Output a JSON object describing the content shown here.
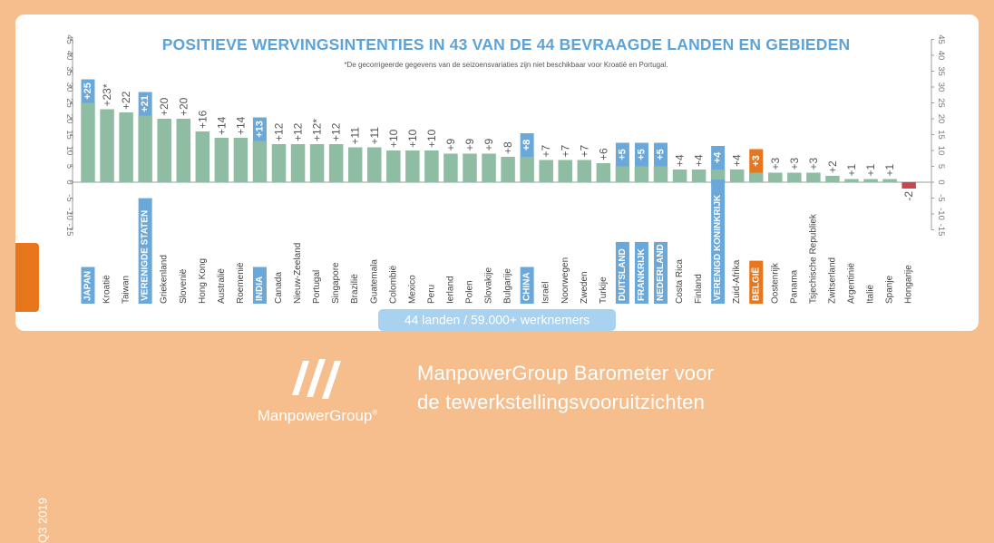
{
  "quarter": "Q3 2019",
  "brand": "ManpowerGroup",
  "brand_mark": "®",
  "tagline": [
    "ManpowerGroup Barometer voor",
    "de tewerkstellingsvooruitzichten"
  ],
  "icons": {
    "logo": "manpowergroup-logo"
  },
  "colors": {
    "bar": "#8ebda3",
    "negative_bar": "#c9454f",
    "highlight_blue": "#6aa8da",
    "highlight_orange": "#e8761c",
    "title": "#5ba3d9",
    "background": "#f6bd8d"
  },
  "chart_data": {
    "type": "bar",
    "title": "POSITIEVE WERVINGSINTENTIES IN 43 VAN DE 44 BEVRAAGDE LANDEN EN GEBIEDEN",
    "subtitle": "*De gecorrigeerde gegevens van de seizoensvariaties zijn niet beschikbaar voor Kroatië en Portugal.",
    "ylim": [
      -15,
      45
    ],
    "yticks": [
      "-15",
      "-10",
      "-5",
      "0",
      "5",
      "10",
      "15",
      "20",
      "25",
      "30",
      "35",
      "40",
      "45"
    ],
    "footer_badge": "44 landen / 59.000+ werknemers",
    "bars": [
      {
        "country": "JAPAN",
        "value": 25,
        "label": "+25",
        "highlight": "blue"
      },
      {
        "country": "Kroatië",
        "value": 23,
        "label": "+23*",
        "highlight": "none"
      },
      {
        "country": "Taiwan",
        "value": 22,
        "label": "+22",
        "highlight": "none"
      },
      {
        "country": "VERENIGDE STATEN",
        "value": 21,
        "label": "+21",
        "highlight": "blue"
      },
      {
        "country": "Griekenland",
        "value": 20,
        "label": "+20",
        "highlight": "none"
      },
      {
        "country": "Slovenië",
        "value": 20,
        "label": "+20",
        "highlight": "none"
      },
      {
        "country": "Hong Kong",
        "value": 16,
        "label": "+16",
        "highlight": "none"
      },
      {
        "country": "Australië",
        "value": 14,
        "label": "+14",
        "highlight": "none"
      },
      {
        "country": "Roemenië",
        "value": 14,
        "label": "+14",
        "highlight": "none"
      },
      {
        "country": "INDIA",
        "value": 13,
        "label": "+13",
        "highlight": "blue"
      },
      {
        "country": "Canada",
        "value": 12,
        "label": "+12",
        "highlight": "none"
      },
      {
        "country": "Nieuw-Zeeland",
        "value": 12,
        "label": "+12",
        "highlight": "none"
      },
      {
        "country": "Portugal",
        "value": 12,
        "label": "+12*",
        "highlight": "none"
      },
      {
        "country": "Singapore",
        "value": 12,
        "label": "+12",
        "highlight": "none"
      },
      {
        "country": "Brazilië",
        "value": 11,
        "label": "+11",
        "highlight": "none"
      },
      {
        "country": "Guatemala",
        "value": 11,
        "label": "+11",
        "highlight": "none"
      },
      {
        "country": "Colombië",
        "value": 10,
        "label": "+10",
        "highlight": "none"
      },
      {
        "country": "Mexico",
        "value": 10,
        "label": "+10",
        "highlight": "none"
      },
      {
        "country": "Peru",
        "value": 10,
        "label": "+10",
        "highlight": "none"
      },
      {
        "country": "Ierland",
        "value": 9,
        "label": "+9",
        "highlight": "none"
      },
      {
        "country": "Polen",
        "value": 9,
        "label": "+9",
        "highlight": "none"
      },
      {
        "country": "Slovakije",
        "value": 9,
        "label": "+9",
        "highlight": "none"
      },
      {
        "country": "Bulgarije",
        "value": 8,
        "label": "+8",
        "highlight": "none"
      },
      {
        "country": "CHINA",
        "value": 8,
        "label": "+8",
        "highlight": "blue"
      },
      {
        "country": "Israël",
        "value": 7,
        "label": "+7",
        "highlight": "none"
      },
      {
        "country": "Noorwegen",
        "value": 7,
        "label": "+7",
        "highlight": "none"
      },
      {
        "country": "Zweden",
        "value": 7,
        "label": "+7",
        "highlight": "none"
      },
      {
        "country": "Turkije",
        "value": 6,
        "label": "+6",
        "highlight": "none"
      },
      {
        "country": "DUITSLAND",
        "value": 5,
        "label": "+5",
        "highlight": "blue"
      },
      {
        "country": "FRANKRIJK",
        "value": 5,
        "label": "+5",
        "highlight": "blue"
      },
      {
        "country": "NEDERLAND",
        "value": 5,
        "label": "+5",
        "highlight": "blue"
      },
      {
        "country": "Costa Rica",
        "value": 4,
        "label": "+4",
        "highlight": "none"
      },
      {
        "country": "Finland",
        "value": 4,
        "label": "+4",
        "highlight": "none"
      },
      {
        "country": "VERENIGD KONINKRIJK",
        "value": 4,
        "label": "+4",
        "highlight": "blue"
      },
      {
        "country": "Zuid-Afrika",
        "value": 4,
        "label": "+4",
        "highlight": "none"
      },
      {
        "country": "BELGIË",
        "value": 3,
        "label": "+3",
        "highlight": "orange"
      },
      {
        "country": "Oostenrijk",
        "value": 3,
        "label": "+3",
        "highlight": "none"
      },
      {
        "country": "Panama",
        "value": 3,
        "label": "+3",
        "highlight": "none"
      },
      {
        "country": "Tsjechische Republiek",
        "value": 3,
        "label": "+3",
        "highlight": "none"
      },
      {
        "country": "Zwitserland",
        "value": 2,
        "label": "+2",
        "highlight": "none"
      },
      {
        "country": "Argentinië",
        "value": 1,
        "label": "+1",
        "highlight": "none"
      },
      {
        "country": "Italië",
        "value": 1,
        "label": "+1",
        "highlight": "none"
      },
      {
        "country": "Spanje",
        "value": 1,
        "label": "+1",
        "highlight": "none"
      },
      {
        "country": "Hongarije",
        "value": -2,
        "label": "-2",
        "highlight": "none"
      }
    ]
  }
}
